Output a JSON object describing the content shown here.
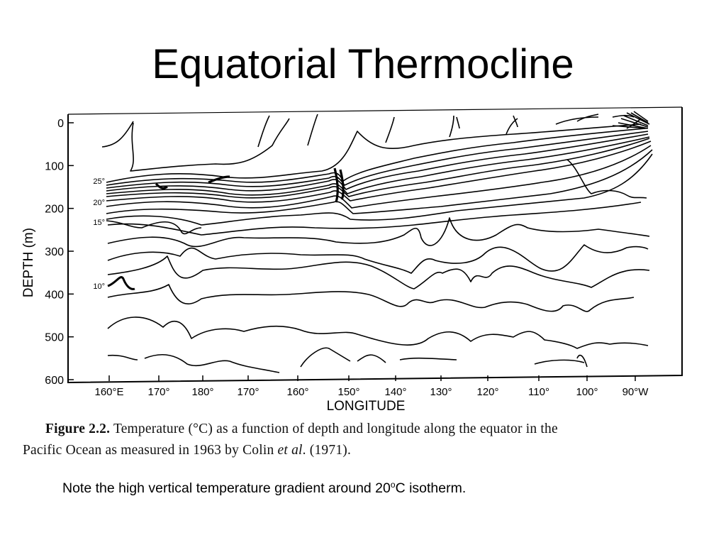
{
  "slide": {
    "title": "Equatorial Thermocline"
  },
  "chart_data": {
    "type": "contour",
    "xlabel": "LONGITUDE",
    "ylabel": "DEPTH  (m)",
    "y_ticks": [
      "0",
      "100",
      "200",
      "300",
      "400",
      "500",
      "600"
    ],
    "ylim": [
      0,
      600
    ],
    "x_ticks": [
      "160°E",
      "170°",
      "180°",
      "170°",
      "160°",
      "150°",
      "140°",
      "130°",
      "120°",
      "110°",
      "100°",
      "90°W"
    ],
    "isotherm_labels": [
      "25°",
      "20°",
      "15°",
      "10°"
    ]
  },
  "caption": {
    "label": "Figure 2.2.",
    "text_1": "Temperature (°C) as a function of depth and longitude along the equator in the",
    "text_2": "Pacific Ocean as measured in 1963 by Colin",
    "italic": "et al",
    "text_3": ". (1971)."
  },
  "note": {
    "text_before": "Note the high vertical temperature gradient around 20",
    "superscript": "o",
    "text_after": "C isotherm."
  }
}
